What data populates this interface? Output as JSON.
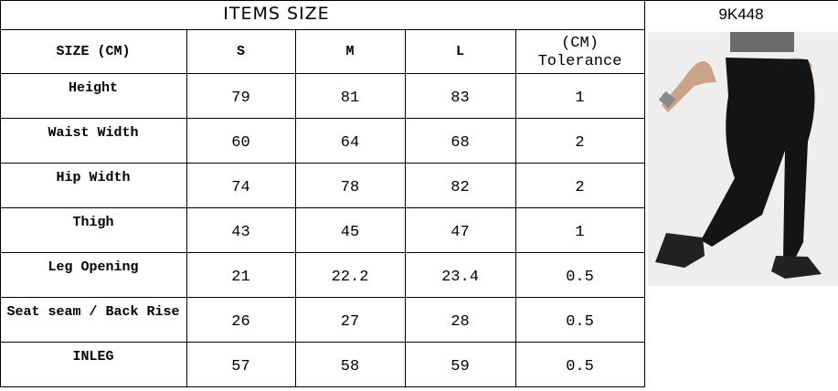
{
  "title": "ITEMS SIZE",
  "code": "9K448",
  "columns": [
    "SIZE (CM)",
    "S",
    "M",
    "L"
  ],
  "tolerance_header": [
    "(CM)",
    "Tolerance"
  ],
  "rows": [
    [
      "Height",
      "79",
      "81",
      "83",
      "1"
    ],
    [
      "Waist Width",
      "60",
      "64",
      "68",
      "2"
    ],
    [
      "Hip Width",
      "74",
      "78",
      "82",
      "2"
    ],
    [
      "Thigh",
      "43",
      "45",
      "47",
      "1"
    ],
    [
      "Leg Opening",
      "21",
      "22.2",
      "23.4",
      "0.5"
    ],
    [
      "Seat seam / Back Rise",
      "26",
      "27",
      "28",
      "0.5"
    ],
    [
      "INLEG",
      "57",
      "58",
      "59",
      "0.5"
    ]
  ]
}
